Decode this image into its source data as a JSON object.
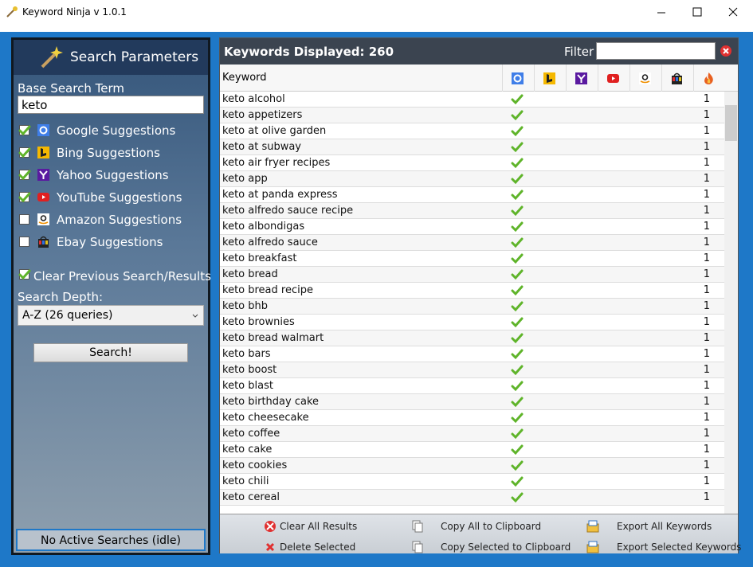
{
  "window": {
    "title": "Keyword Ninja v 1.0.1"
  },
  "search_panel": {
    "title": "Search Parameters",
    "base_search_label": "Base Search Term",
    "base_search_value": "keto",
    "sources": [
      {
        "label": "Google Suggestions",
        "checked": true,
        "icon": "google"
      },
      {
        "label": "Bing Suggestions",
        "checked": true,
        "icon": "bing"
      },
      {
        "label": "Yahoo Suggestions",
        "checked": true,
        "icon": "yahoo"
      },
      {
        "label": "YouTube Suggestions",
        "checked": true,
        "icon": "youtube"
      },
      {
        "label": "Amazon Suggestions",
        "checked": false,
        "icon": "amazon"
      },
      {
        "label": "Ebay Suggestions",
        "checked": false,
        "icon": "ebay"
      }
    ],
    "clear_previous": {
      "label": "Clear Previous Search/Results",
      "checked": true
    },
    "depth_label": "Search Depth:",
    "depth_value": "A-Z (26 queries)",
    "search_button": "Search!",
    "status": "No Active Searches (idle)"
  },
  "results": {
    "title": "Keywords Displayed: 260",
    "filter_label": "Filter",
    "keyword_header": "Keyword",
    "columns": [
      "google",
      "bing",
      "yahoo",
      "youtube",
      "amazon",
      "ebay",
      "fire"
    ],
    "rows": [
      {
        "keyword": "keto alcohol",
        "google": true,
        "count": 1
      },
      {
        "keyword": "keto appetizers",
        "google": true,
        "count": 1
      },
      {
        "keyword": "keto at olive garden",
        "google": true,
        "count": 1
      },
      {
        "keyword": "keto at subway",
        "google": true,
        "count": 1
      },
      {
        "keyword": "keto air fryer recipes",
        "google": true,
        "count": 1
      },
      {
        "keyword": "keto app",
        "google": true,
        "count": 1
      },
      {
        "keyword": "keto at panda express",
        "google": true,
        "count": 1
      },
      {
        "keyword": "keto alfredo sauce recipe",
        "google": true,
        "count": 1
      },
      {
        "keyword": "keto albondigas",
        "google": true,
        "count": 1
      },
      {
        "keyword": "keto alfredo sauce",
        "google": true,
        "count": 1
      },
      {
        "keyword": "keto breakfast",
        "google": true,
        "count": 1
      },
      {
        "keyword": "keto bread",
        "google": true,
        "count": 1
      },
      {
        "keyword": "keto bread recipe",
        "google": true,
        "count": 1
      },
      {
        "keyword": "keto bhb",
        "google": true,
        "count": 1
      },
      {
        "keyword": "keto brownies",
        "google": true,
        "count": 1
      },
      {
        "keyword": "keto bread walmart",
        "google": true,
        "count": 1
      },
      {
        "keyword": "keto bars",
        "google": true,
        "count": 1
      },
      {
        "keyword": "keto boost",
        "google": true,
        "count": 1
      },
      {
        "keyword": "keto blast",
        "google": true,
        "count": 1
      },
      {
        "keyword": "keto birthday cake",
        "google": true,
        "count": 1
      },
      {
        "keyword": "keto cheesecake",
        "google": true,
        "count": 1
      },
      {
        "keyword": "keto coffee",
        "google": true,
        "count": 1
      },
      {
        "keyword": "keto cake",
        "google": true,
        "count": 1
      },
      {
        "keyword": "keto cookies",
        "google": true,
        "count": 1
      },
      {
        "keyword": "keto chili",
        "google": true,
        "count": 1
      },
      {
        "keyword": "keto cereal",
        "google": true,
        "count": 1
      }
    ],
    "buttons": [
      [
        "Clear All Results",
        "Copy All to Clipboard",
        "Export All Keywords"
      ],
      [
        "Delete Selected",
        "Copy Selected to Clipboard",
        "Export Selected Keywords"
      ]
    ]
  }
}
